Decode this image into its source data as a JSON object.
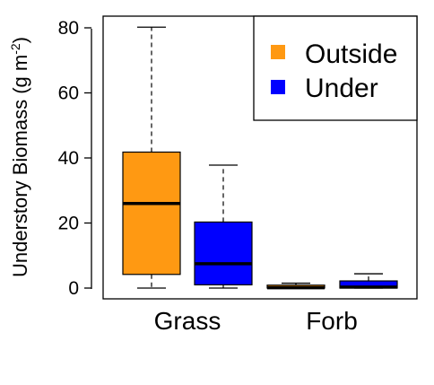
{
  "chart_data": {
    "type": "boxplot",
    "ylabel": "Understory Biomass (g m",
    "ylabel_sup": "-2",
    "ylabel_close": ")",
    "ylim": [
      -3,
      83
    ],
    "yticks": [
      0,
      20,
      40,
      60,
      80
    ],
    "ytick_labels": [
      "0",
      "20",
      "40",
      "60",
      "80"
    ],
    "categories": [
      "Grass",
      "Forb"
    ],
    "series": [
      {
        "name": "Outside",
        "color": "#FF9912"
      },
      {
        "name": "Under",
        "color": "#0000FF"
      }
    ],
    "boxes": [
      {
        "category": "Grass",
        "series": "Outside",
        "min": 0,
        "q1": 4.2,
        "median": 26,
        "q3": 41.8,
        "max": 80.2
      },
      {
        "category": "Grass",
        "series": "Under",
        "min": 0,
        "q1": 1.0,
        "median": 7.5,
        "q3": 20.3,
        "max": 37.8
      },
      {
        "category": "Forb",
        "series": "Outside",
        "min": 0,
        "q1": 0,
        "median": 0.1,
        "q3": 0.9,
        "max": 1.5
      },
      {
        "category": "Forb",
        "series": "Under",
        "min": 0,
        "q1": 0,
        "median": 0.3,
        "q3": 2.2,
        "max": 4.4
      }
    ],
    "legend": {
      "position": "top-right",
      "entries": [
        "Outside",
        "Under"
      ]
    },
    "grid": false
  }
}
